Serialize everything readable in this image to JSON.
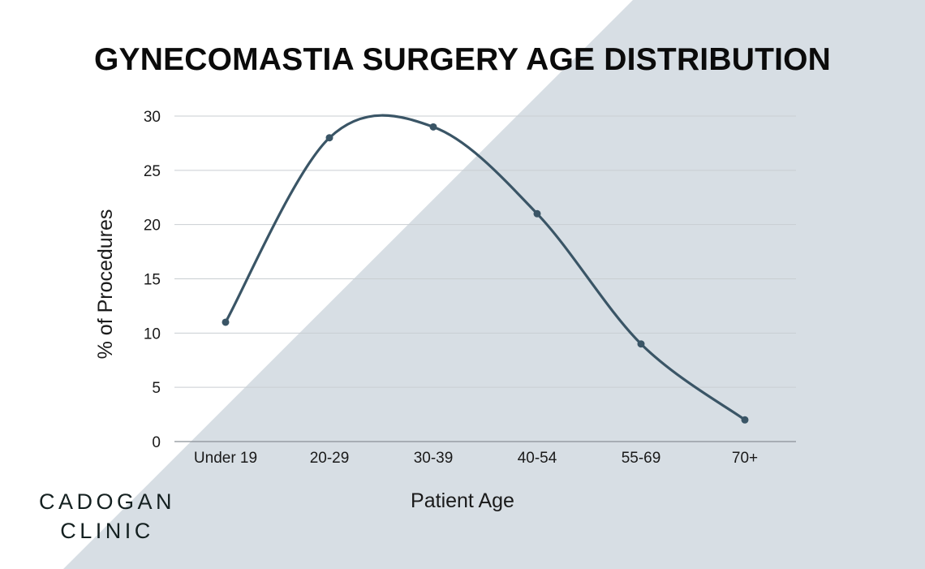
{
  "chart_data": {
    "type": "line",
    "title": "GYNECOMASTIA SURGERY AGE DISTRIBUTION",
    "xlabel": "Patient Age",
    "ylabel": "% of Procedures",
    "categories": [
      "Under 19",
      "20-29",
      "30-39",
      "40-54",
      "55-69",
      "70+"
    ],
    "series": [
      {
        "values": [
          11,
          28,
          29,
          21,
          9,
          2
        ]
      }
    ],
    "ylim": [
      0,
      30
    ],
    "yticks": [
      0,
      5,
      10,
      15,
      20,
      25,
      30
    ],
    "grid": true,
    "smooth": true,
    "colors": {
      "line": "#3a5566",
      "grid": "#c9ced2",
      "background_shape": "#d7dee4"
    }
  },
  "brand": {
    "logo_line1": "CADOGAN",
    "logo_line2": "CLINIC"
  }
}
